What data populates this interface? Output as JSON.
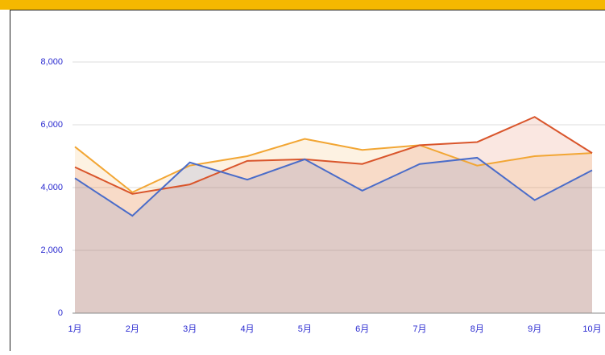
{
  "chart_data": {
    "type": "area",
    "categories": [
      "1月",
      "2月",
      "3月",
      "4月",
      "5月",
      "6月",
      "7月",
      "8月",
      "9月",
      "10月"
    ],
    "series": [
      {
        "color": "#f2a634",
        "values": [
          5300,
          3850,
          4700,
          5000,
          5550,
          5200,
          5350,
          4700,
          5000,
          5100
        ]
      },
      {
        "color": "#d9552b",
        "values": [
          4650,
          3800,
          4100,
          4850,
          4900,
          4750,
          5350,
          5450,
          6250,
          5100
        ]
      },
      {
        "color": "#4a6cc9",
        "values": [
          4300,
          3100,
          4800,
          4250,
          4900,
          3900,
          4750,
          4950,
          3600,
          4550
        ]
      }
    ],
    "ylim": [
      0,
      8000
    ],
    "yticks": [
      0,
      {
        "value": 2000,
        "label": "2,000"
      },
      {
        "value": 4000,
        "label": "4,000"
      },
      {
        "value": 6000,
        "label": "6,000"
      },
      {
        "value": 8000,
        "label": "8,000"
      }
    ],
    "grid": true
  }
}
